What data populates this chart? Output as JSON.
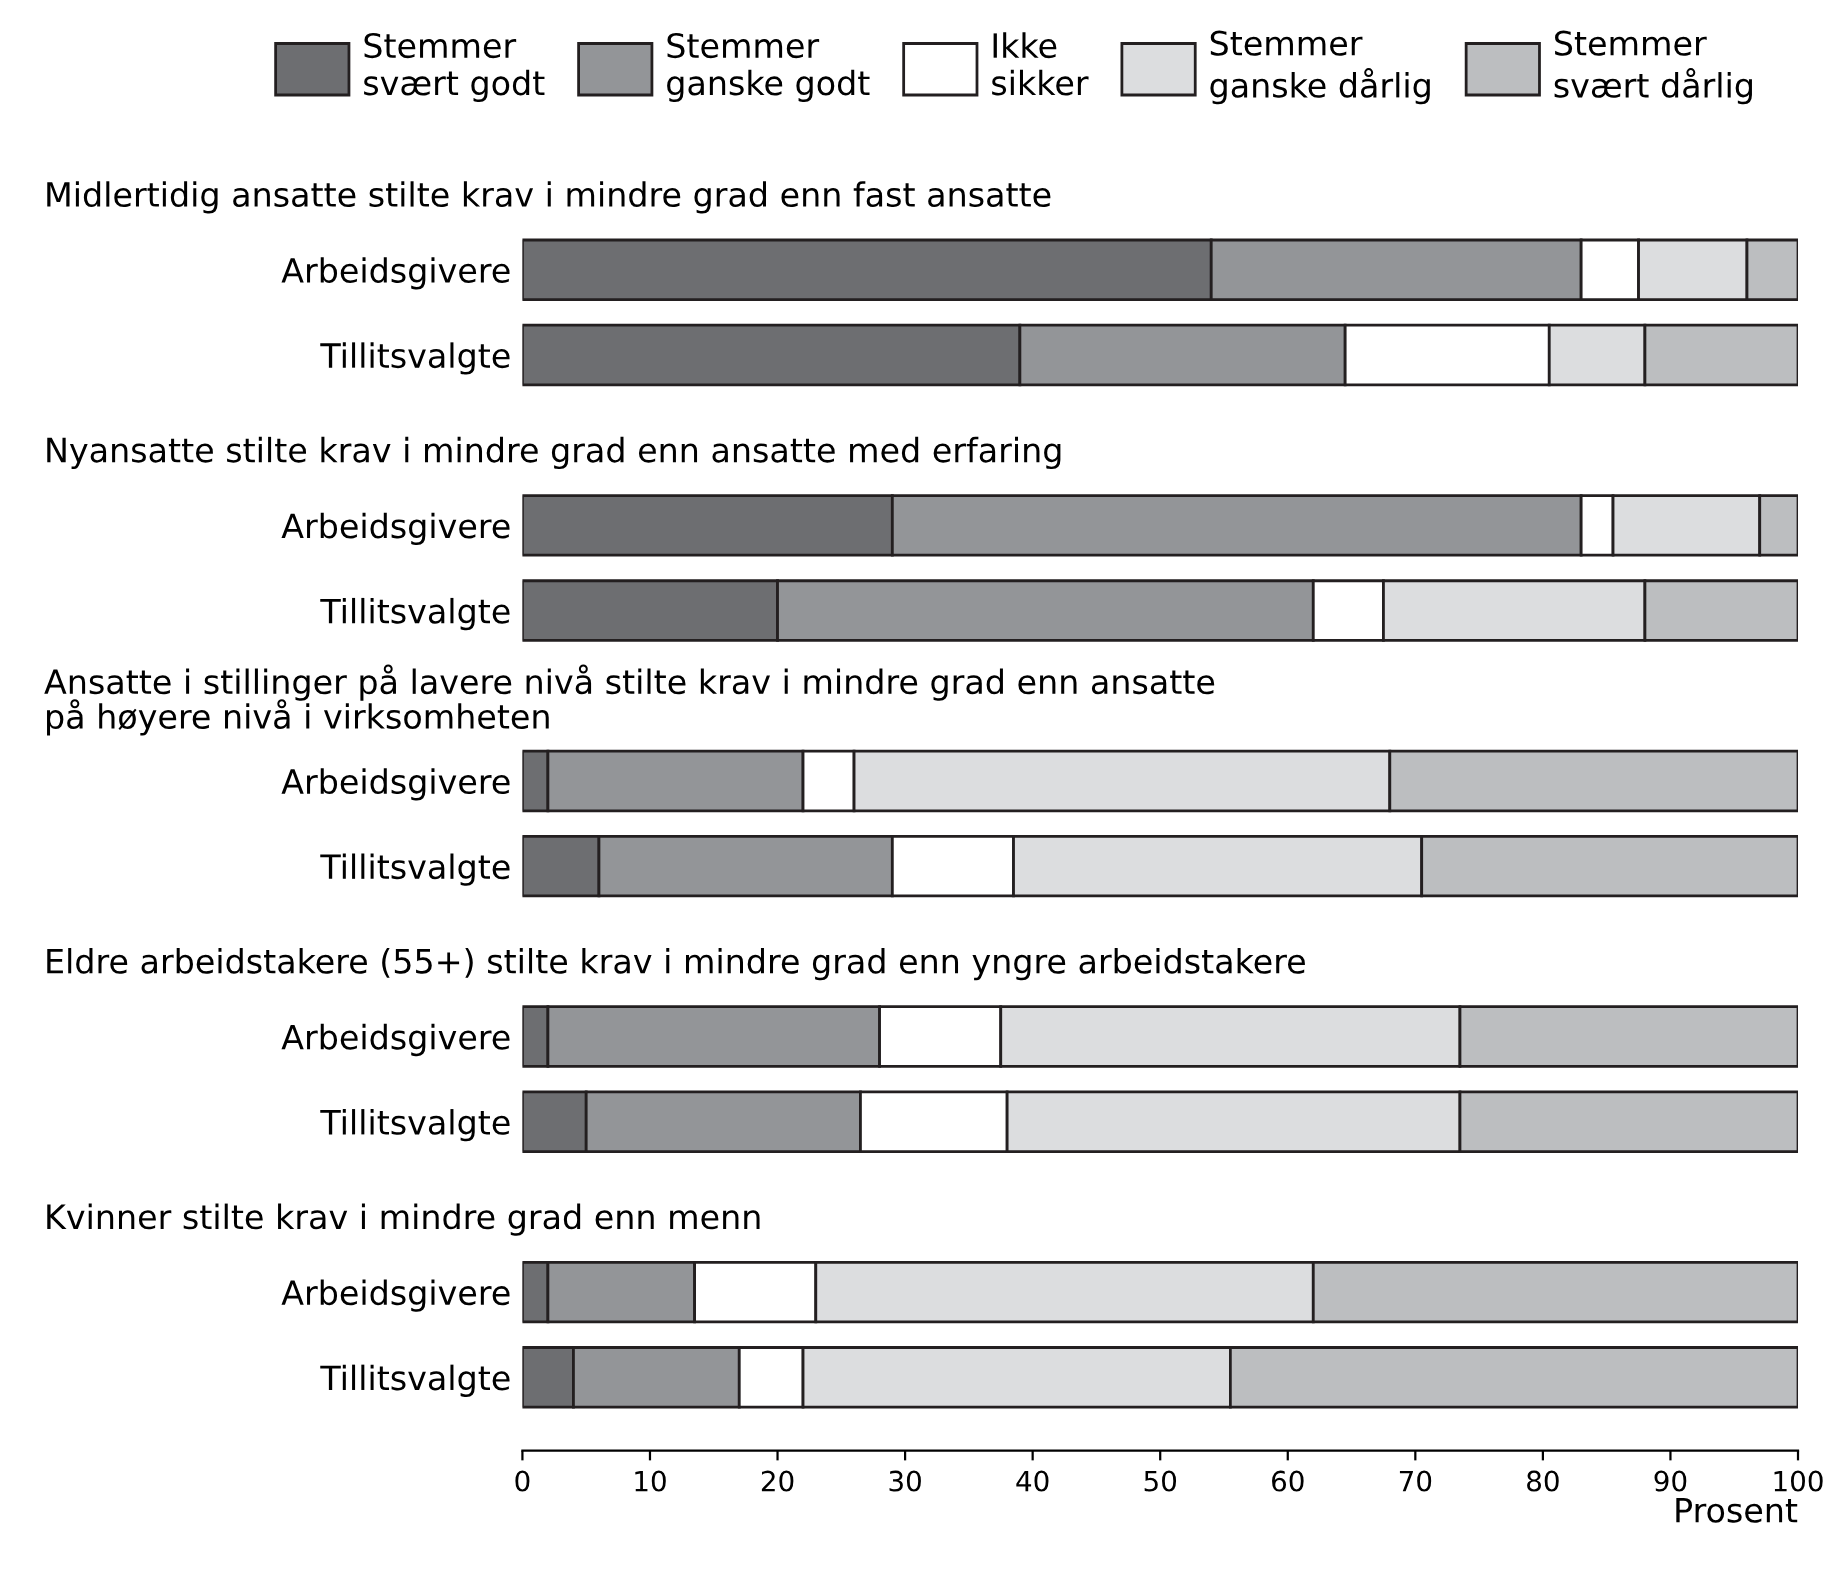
{
  "chart_data": {
    "type": "bar",
    "orientation": "horizontal",
    "stacked": true,
    "xlabel": "Prosent",
    "categories": [
      "Arbeidsgivere",
      "Tillitsvalgte",
      "Arbeidsgivere",
      "Tillitsvalgte",
      "Arbeidsgivere",
      "Tillitsvalgte",
      "Arbeidsgivere",
      "Tillitsvalgte",
      "Arbeidsgivere",
      "Tillitsvalgte"
    ],
    "annotations": [
      "Midlertidig ansatte stilte krav i mindre grad enn fast ansatte",
      "Nyansatte stilte krav i mindre grad enn ansatte med erfaring",
      "Ansatte i stillinger på lavere nivå stilte krav i mindre grad enn ansatte\npå høyere nivå i virksomheten",
      "Eldre arbeidstakere (55+) stilte krav i mindre grad enn yngre arbeidstakere",
      "Kvinner stilte krav i mindre grad enn menn"
    ],
    "series": [
      {
        "name": "Stemmer\nsvært godt",
        "color": "#6d6e71",
        "values": [
          54,
          39,
          29,
          20,
          2,
          6,
          2,
          5,
          2,
          4
        ]
      },
      {
        "name": "Stemmer\nganske godt",
        "color": "#939598",
        "values": [
          29,
          25.5,
          54,
          42,
          20,
          23,
          26,
          21.5,
          11.5,
          13
        ]
      },
      {
        "name": "Ikke\nsikker",
        "color": "#ffffff",
        "values": [
          4.5,
          16,
          2.5,
          5.5,
          4,
          9.5,
          9.5,
          11.5,
          9.5,
          5
        ]
      },
      {
        "name": "Stemmer\nganske dårlig",
        "color": "#dcdddf",
        "values": [
          8.5,
          7.5,
          11.5,
          20.5,
          42,
          32,
          36,
          35.5,
          39,
          33.5
        ]
      },
      {
        "name": "Stemmer\nsvært dårlig",
        "color": "#bcbec0",
        "values": [
          4,
          12,
          3,
          12,
          32,
          29.5,
          26.5,
          26.5,
          38,
          44.5
        ]
      }
    ],
    "xlim": [
      0,
      100
    ],
    "xticks": [
      0,
      10,
      20,
      30,
      40,
      50,
      60,
      70,
      80,
      90,
      100
    ],
    "legend": "top"
  }
}
